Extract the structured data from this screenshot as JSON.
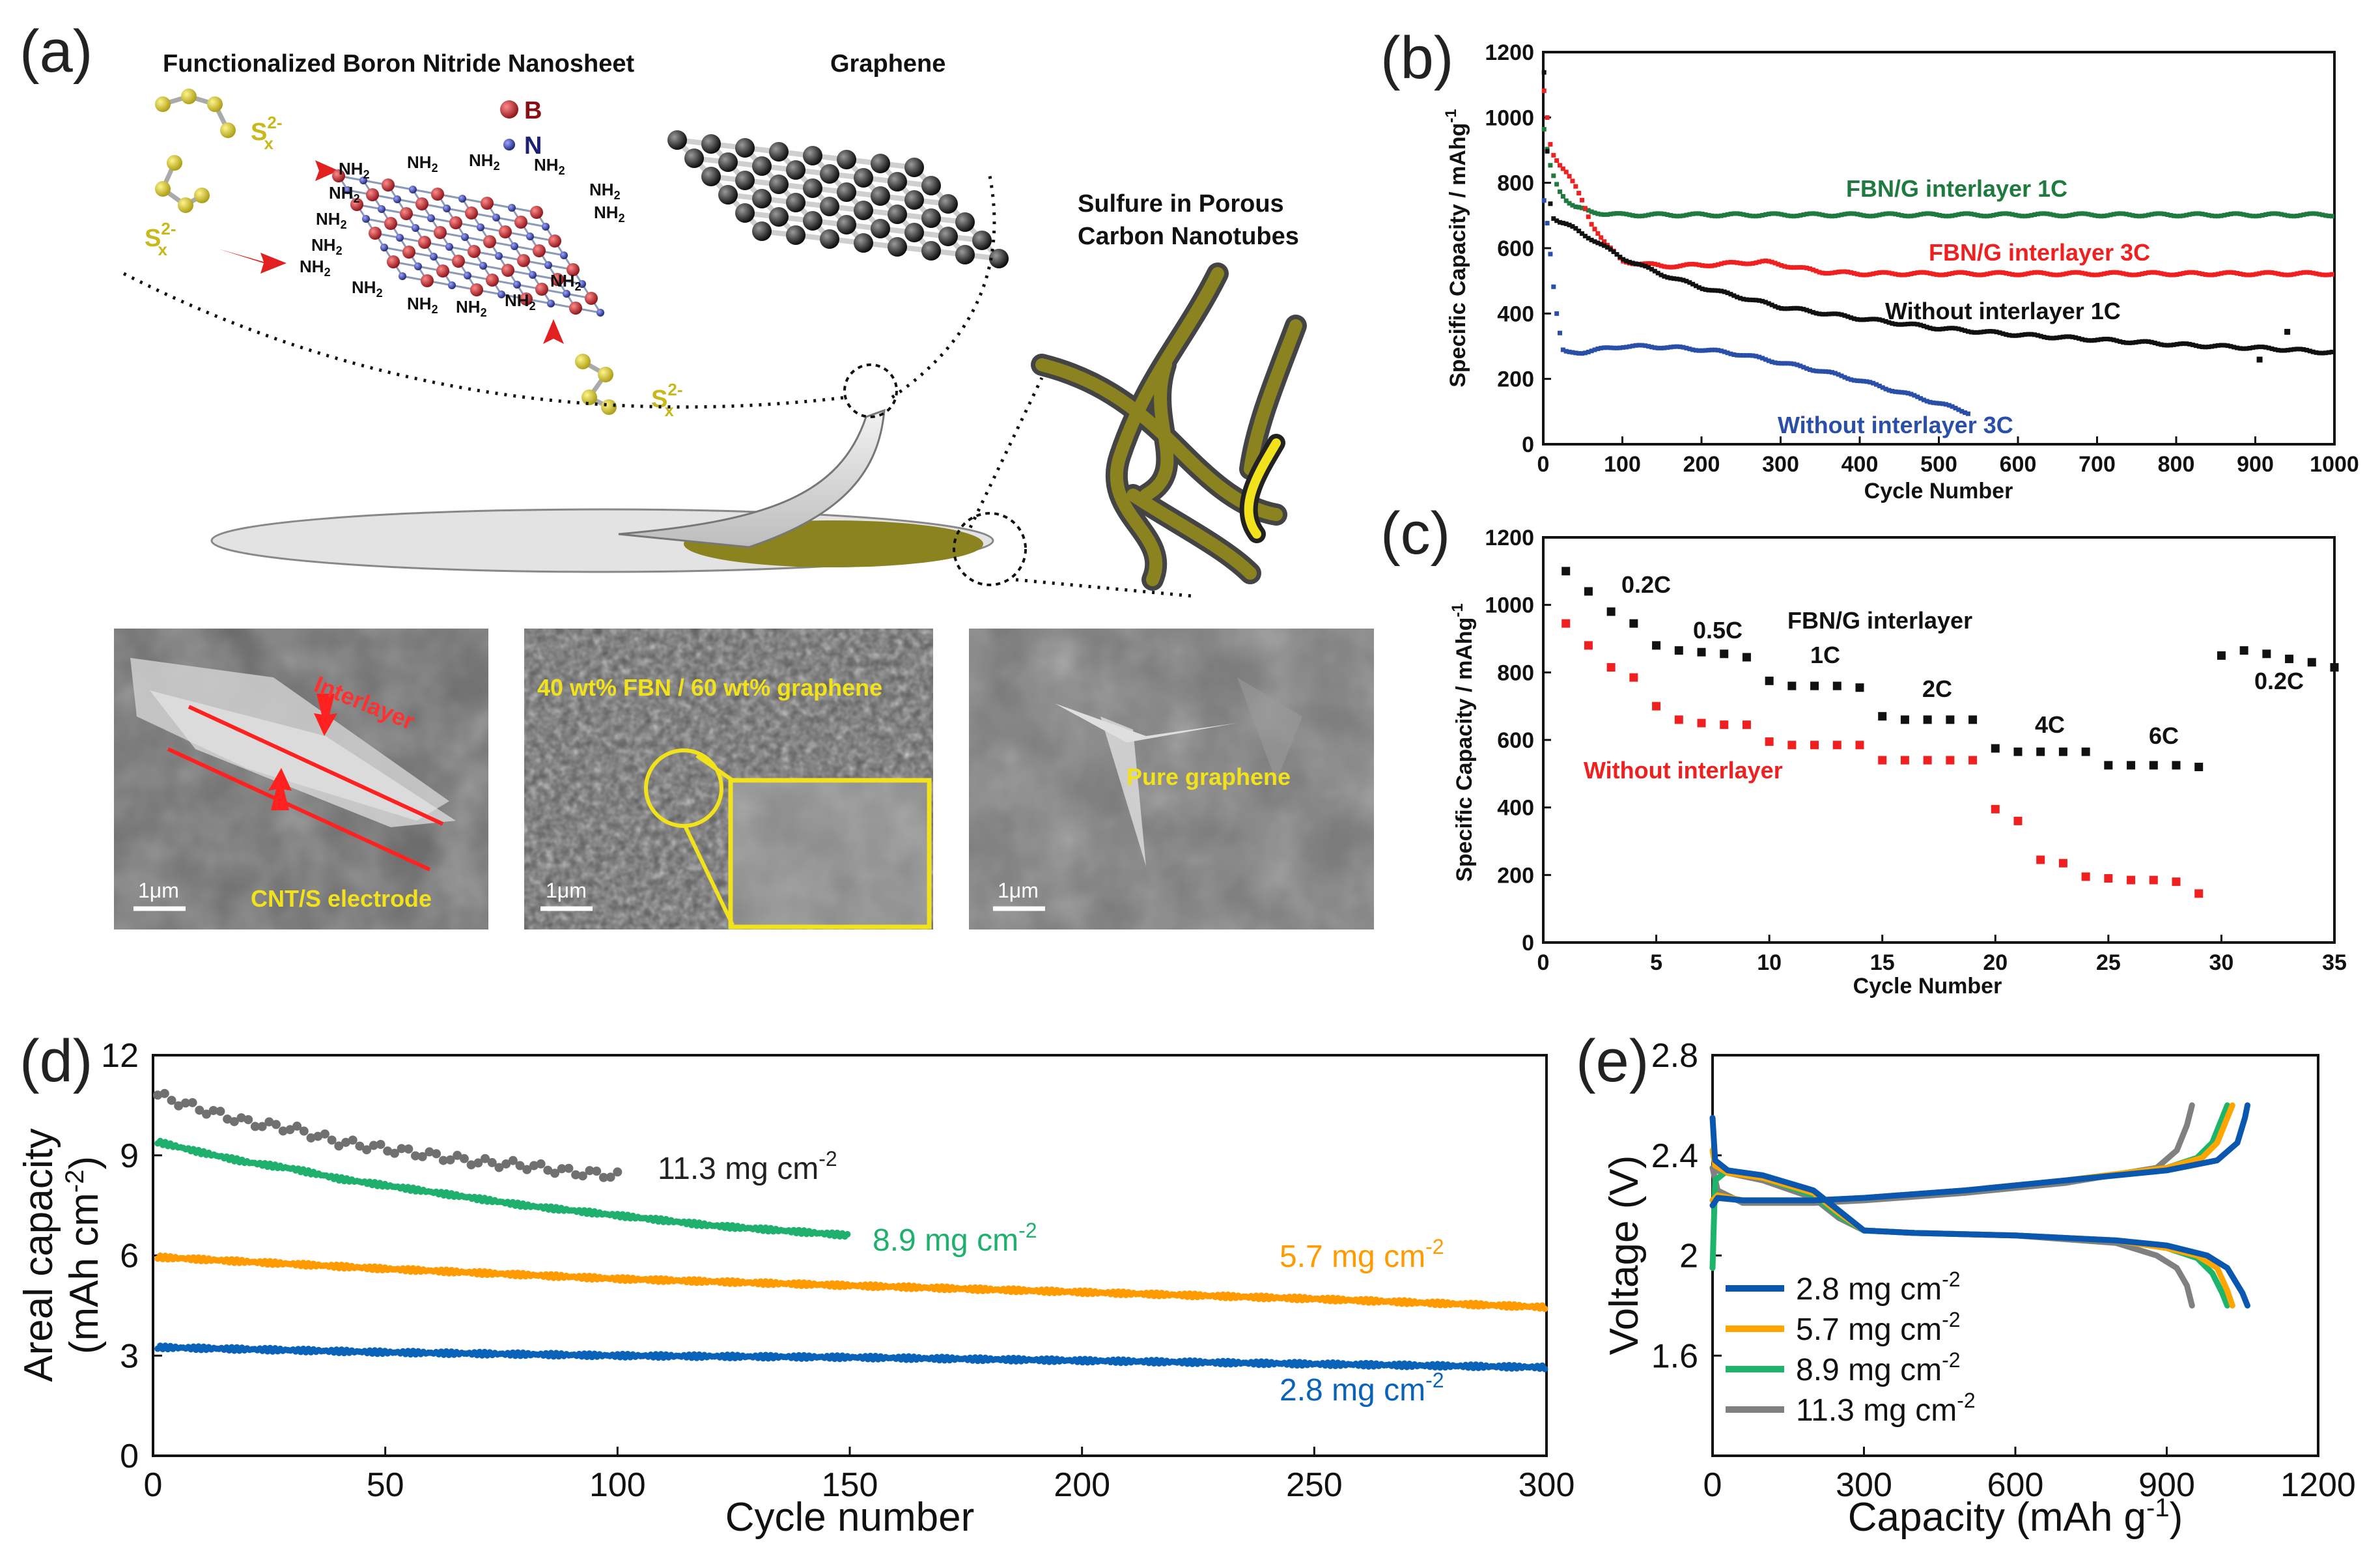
{
  "panel_labels": {
    "a": "(a)",
    "b": "(b)",
    "c": "(c)",
    "d": "(d)",
    "e": "(e)"
  },
  "diagram": {
    "title_fbn": "Functionalized Boron Nitride Nanosheet",
    "title_graphene": "Graphene",
    "title_sulfur_line1": "Sulfure in Porous",
    "title_sulfur_line2": "Carbon Nanotubes",
    "legend_b": "B",
    "legend_n": "N",
    "group_label": "NH2",
    "polysulfide": "Sx2-"
  },
  "sem": {
    "img1_label_interlayer": "Interlayer",
    "img1_label_electrode": "CNT/S electrode",
    "img2_label": "40 wt% FBN / 60 wt% graphene",
    "img3_label": "Pure graphene",
    "scale_bar": "1μm"
  },
  "colors": {
    "green": "#1e7a3e",
    "red": "#f02020",
    "black": "#111111",
    "blue": "#2a4fa8",
    "d_gray": "#707070",
    "d_green": "#1fb06e",
    "d_orange": "#ff9a00",
    "d_blue": "#0a63b8",
    "e_blue": "#0a57b0",
    "e_orange": "#ffa500",
    "e_green": "#1db56c",
    "e_gray": "#808080",
    "sem_yellow": "#f2e21b"
  },
  "chart_data": [
    {
      "id": "b",
      "type": "scatter",
      "title": "",
      "xlabel": "Cycle Number",
      "ylabel": "Specific Capacity / mAhg-1",
      "ylabel_main": "Specific Capacity / mAhg",
      "ylabel_sup": "-1",
      "xlim": [
        0,
        1000
      ],
      "ylim": [
        0,
        1200
      ],
      "xticks": [
        0,
        100,
        200,
        300,
        400,
        500,
        600,
        700,
        800,
        900,
        1000
      ],
      "yticks": [
        0,
        200,
        400,
        600,
        800,
        1000,
        1200
      ],
      "series": [
        {
          "name": "FBN/G interlayer 1C",
          "x": [
            1,
            5,
            10,
            20,
            30,
            40,
            60,
            80,
            100,
            200,
            300,
            400,
            500,
            600,
            700,
            800,
            900,
            1000
          ],
          "values": [
            960,
            900,
            840,
            780,
            745,
            725,
            712,
            705,
            702,
            702,
            702,
            702,
            702,
            702,
            702,
            702,
            702,
            702
          ]
        },
        {
          "name": "FBN/G interlayer 3C",
          "x": [
            1,
            5,
            10,
            20,
            30,
            40,
            50,
            60,
            80,
            100,
            150,
            200,
            250,
            280,
            300,
            350,
            400,
            500,
            600,
            700,
            800,
            900,
            1000
          ],
          "values": [
            1080,
            1000,
            900,
            860,
            830,
            790,
            740,
            680,
            610,
            560,
            545,
            548,
            555,
            558,
            550,
            528,
            522,
            522,
            522,
            522,
            522,
            522,
            522
          ]
        },
        {
          "name": "Without interlayer 1C",
          "x": [
            1,
            5,
            10,
            20,
            40,
            60,
            80,
            100,
            150,
            200,
            250,
            300,
            400,
            500,
            600,
            700,
            800,
            900,
            940,
            1000
          ],
          "values": [
            1140,
            900,
            700,
            680,
            660,
            630,
            600,
            570,
            520,
            480,
            450,
            420,
            385,
            355,
            335,
            320,
            305,
            295,
            290,
            280
          ]
        },
        {
          "name": "Without interlayer 3C",
          "x": [
            1,
            5,
            10,
            15,
            20,
            25,
            30,
            50,
            100,
            150,
            200,
            250,
            300,
            350,
            400,
            450,
            500,
            540
          ],
          "values": [
            750,
            680,
            560,
            430,
            350,
            285,
            280,
            282,
            300,
            298,
            290,
            275,
            250,
            225,
            195,
            160,
            125,
            95
          ]
        }
      ],
      "outliers": {
        "x": [
          905,
          940
        ],
        "values": [
          260,
          345
        ]
      },
      "annotations": [
        "FBN/G interlayer 1C",
        "FBN/G interlayer 3C",
        "Without interlayer 1C",
        "Without interlayer 3C"
      ]
    },
    {
      "id": "c",
      "type": "scatter",
      "title": "",
      "xlabel": "Cycle Number",
      "ylabel": "Specific Capacity / mAhg-1",
      "ylabel_main": "Specific Capacity / mAhg",
      "ylabel_sup": "-1",
      "xlim": [
        0,
        35
      ],
      "ylim": [
        0,
        1200
      ],
      "xticks": [
        0,
        5,
        10,
        15,
        20,
        25,
        30,
        35
      ],
      "yticks": [
        0,
        200,
        400,
        600,
        800,
        1000,
        1200
      ],
      "series": [
        {
          "name": "FBN/G interlayer",
          "x": [
            1,
            2,
            3,
            4,
            5,
            6,
            7,
            8,
            9,
            10,
            11,
            12,
            13,
            14,
            15,
            16,
            17,
            18,
            19,
            20,
            21,
            22,
            23,
            24,
            25,
            26,
            27,
            28,
            29,
            30,
            31,
            32,
            33,
            34,
            35
          ],
          "values": [
            1100,
            1040,
            980,
            945,
            880,
            865,
            860,
            855,
            845,
            775,
            760,
            760,
            760,
            755,
            670,
            660,
            660,
            660,
            660,
            575,
            565,
            565,
            565,
            565,
            525,
            525,
            525,
            525,
            520,
            850,
            865,
            855,
            840,
            830,
            815
          ]
        },
        {
          "name": "Without interlayer",
          "x": [
            1,
            2,
            3,
            4,
            5,
            6,
            7,
            8,
            9,
            10,
            11,
            12,
            13,
            14,
            15,
            16,
            17,
            18,
            19,
            20,
            21,
            22,
            23,
            24,
            25,
            26,
            27,
            28,
            29
          ],
          "values": [
            945,
            880,
            815,
            785,
            700,
            660,
            650,
            645,
            645,
            595,
            585,
            585,
            585,
            585,
            540,
            540,
            540,
            540,
            540,
            395,
            360,
            245,
            235,
            195,
            190,
            185,
            185,
            180,
            145
          ]
        }
      ],
      "rate_labels": [
        "0.2C",
        "0.5C",
        "1C",
        "2C",
        "4C",
        "6C",
        "0.2C"
      ],
      "annotations": [
        "FBN/G interlayer",
        "Without interlayer"
      ]
    },
    {
      "id": "d",
      "type": "scatter",
      "title": "",
      "xlabel": "Cycle number",
      "ylabel_line1": "Areal capacity",
      "ylabel_line2": "(mAh cm-2)",
      "ylabel_line2_main": "(mAh cm",
      "ylabel_line2_sup": "-2",
      "ylabel_line2_end": ")",
      "xlim": [
        0,
        300
      ],
      "ylim": [
        0,
        12
      ],
      "xticks": [
        0,
        50,
        100,
        150,
        200,
        250,
        300
      ],
      "yticks": [
        0,
        3,
        6,
        9,
        12
      ],
      "series": [
        {
          "name": "11.3 mg cm-2",
          "label_main": "11.3 mg cm",
          "label_sup": "-2",
          "x": [
            1,
            10,
            20,
            30,
            40,
            50,
            60,
            70,
            80,
            90,
            100
          ],
          "values": [
            10.8,
            10.4,
            10.0,
            9.8,
            9.4,
            9.2,
            9.0,
            8.8,
            8.7,
            8.5,
            8.4
          ]
        },
        {
          "name": "8.9 mg cm-2",
          "label_main": "8.9 mg cm",
          "label_sup": "-2",
          "x": [
            1,
            10,
            20,
            30,
            40,
            50,
            60,
            80,
            100,
            120,
            150
          ],
          "values": [
            9.4,
            9.1,
            8.8,
            8.6,
            8.3,
            8.1,
            7.9,
            7.5,
            7.2,
            6.9,
            6.6
          ]
        },
        {
          "name": "5.7 mg cm-2",
          "label_main": "5.7 mg cm",
          "label_sup": "-2",
          "x": [
            1,
            50,
            100,
            150,
            200,
            250,
            300
          ],
          "values": [
            5.95,
            5.6,
            5.3,
            5.1,
            4.9,
            4.7,
            4.45
          ]
        },
        {
          "name": "2.8 mg cm-2",
          "label_main": "2.8 mg cm",
          "label_sup": "-2",
          "x": [
            1,
            50,
            100,
            150,
            200,
            250,
            300
          ],
          "values": [
            3.25,
            3.1,
            3.0,
            2.95,
            2.85,
            2.75,
            2.65
          ]
        }
      ]
    },
    {
      "id": "e",
      "type": "line",
      "title": "",
      "xlabel": "Capacity (mAh g-1)",
      "xlabel_main": "Capacity (mAh g",
      "xlabel_sup": "-1",
      "xlabel_end": ")",
      "ylabel": "Voltage (V)",
      "xlim": [
        0,
        1200
      ],
      "ylim": [
        1.2,
        2.8
      ],
      "xticks": [
        0,
        300,
        600,
        900,
        1200
      ],
      "yticks": [
        1.6,
        2.0,
        2.4,
        2.8
      ],
      "legend_position": "bottom-left",
      "series": [
        {
          "name": "2.8 mg cm-2",
          "label_main": "2.8 mg cm",
          "label_sup": "-2",
          "discharge": {
            "x": [
              0,
              5,
              30,
              100,
              200,
              250,
              300,
              400,
              600,
              800,
              900,
              980,
              1020,
              1050,
              1060
            ],
            "values": [
              2.55,
              2.38,
              2.34,
              2.32,
              2.26,
              2.18,
              2.1,
              2.09,
              2.08,
              2.06,
              2.04,
              2.0,
              1.95,
              1.85,
              1.8
            ]
          },
          "charge": {
            "x": [
              0,
              10,
              60,
              200,
              300,
              500,
              700,
              900,
              1000,
              1040,
              1055,
              1060
            ],
            "values": [
              2.2,
              2.23,
              2.22,
              2.22,
              2.23,
              2.26,
              2.3,
              2.34,
              2.38,
              2.45,
              2.55,
              2.6
            ]
          }
        },
        {
          "name": "5.7 mg cm-2",
          "label_main": "5.7 mg cm",
          "label_sup": "-2",
          "discharge": {
            "x": [
              0,
              5,
              30,
              100,
              200,
              250,
              300,
              400,
              600,
              800,
              900,
              960,
              1000,
              1020,
              1030
            ],
            "values": [
              2.42,
              2.36,
              2.33,
              2.31,
              2.25,
              2.17,
              2.1,
              2.09,
              2.08,
              2.06,
              2.03,
              2.0,
              1.95,
              1.86,
              1.8
            ]
          },
          "charge": {
            "x": [
              0,
              10,
              60,
              200,
              300,
              500,
              700,
              900,
              970,
              1000,
              1020,
              1030
            ],
            "values": [
              2.22,
              2.24,
              2.22,
              2.22,
              2.23,
              2.26,
              2.3,
              2.35,
              2.39,
              2.45,
              2.55,
              2.6
            ]
          }
        },
        {
          "name": "8.9 mg cm-2",
          "label_main": "8.9 mg cm",
          "label_sup": "-2",
          "discharge": {
            "x": [
              0,
              5,
              30,
              100,
              200,
              250,
              300,
              400,
              600,
              800,
              900,
              960,
              990,
              1010,
              1020
            ],
            "values": [
              1.95,
              2.3,
              2.34,
              2.31,
              2.24,
              2.16,
              2.1,
              2.09,
              2.08,
              2.06,
              2.03,
              1.99,
              1.93,
              1.85,
              1.8
            ]
          },
          "charge": {
            "x": [
              0,
              10,
              60,
              200,
              300,
              500,
              700,
              900,
              960,
              990,
              1010,
              1020
            ],
            "values": [
              2.22,
              2.24,
              2.22,
              2.22,
              2.23,
              2.26,
              2.3,
              2.35,
              2.39,
              2.45,
              2.55,
              2.6
            ]
          }
        },
        {
          "name": "11.3 mg cm-2",
          "label_main": "11.3 mg cm",
          "label_sup": "-2",
          "discharge": {
            "x": [
              0,
              5,
              30,
              100,
              200,
              250,
              300,
              400,
              600,
              800,
              880,
              920,
              940,
              950
            ],
            "values": [
              2.35,
              2.34,
              2.33,
              2.3,
              2.23,
              2.15,
              2.1,
              2.09,
              2.08,
              2.05,
              2.0,
              1.95,
              1.88,
              1.8
            ]
          },
          "charge": {
            "x": [
              0,
              10,
              60,
              200,
              300,
              500,
              700,
              880,
              920,
              940,
              950
            ],
            "values": [
              2.35,
              2.26,
              2.21,
              2.21,
              2.22,
              2.25,
              2.29,
              2.35,
              2.42,
              2.52,
              2.6
            ]
          }
        }
      ]
    }
  ]
}
